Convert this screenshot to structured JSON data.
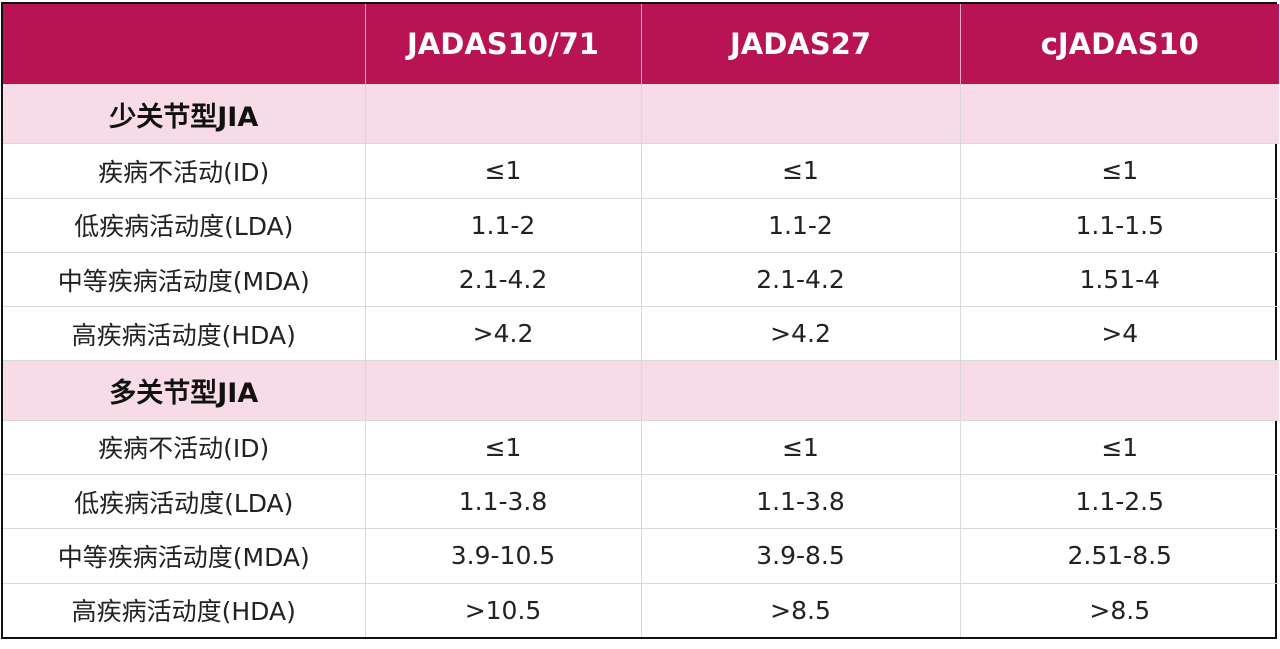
{
  "table": {
    "header": [
      "",
      "JADAS10/71",
      "JADAS27",
      "cJADAS10"
    ],
    "sections": [
      {
        "title": "少关节型JIA",
        "rows": [
          {
            "label": "疾病不活动(ID)",
            "values": [
              "≤1",
              "≤1",
              "≤1"
            ]
          },
          {
            "label": "低疾病活动度(LDA)",
            "values": [
              "1.1-2",
              "1.1-2",
              "1.1-1.5"
            ]
          },
          {
            "label": "中等疾病活动度(MDA)",
            "values": [
              "2.1-4.2",
              "2.1-4.2",
              "1.51-4"
            ]
          },
          {
            "label": "高疾病活动度(HDA)",
            "values": [
              ">4.2",
              ">4.2",
              ">4"
            ]
          }
        ]
      },
      {
        "title": "多关节型JIA",
        "rows": [
          {
            "label": "疾病不活动(ID)",
            "values": [
              "≤1",
              "≤1",
              "≤1"
            ]
          },
          {
            "label": "低疾病活动度(LDA)",
            "values": [
              "1.1-3.8",
              "1.1-3.8",
              "1.1-2.5"
            ]
          },
          {
            "label": "中等疾病活动度(MDA)",
            "values": [
              "3.9-10.5",
              "3.9-8.5",
              "2.51-8.5"
            ]
          },
          {
            "label": "高疾病活动度(HDA)",
            "values": [
              ">10.5",
              ">8.5",
              ">8.5"
            ]
          }
        ]
      }
    ]
  },
  "colors": {
    "header_bg": "#b81352",
    "section_bg": "#f7dce7"
  }
}
